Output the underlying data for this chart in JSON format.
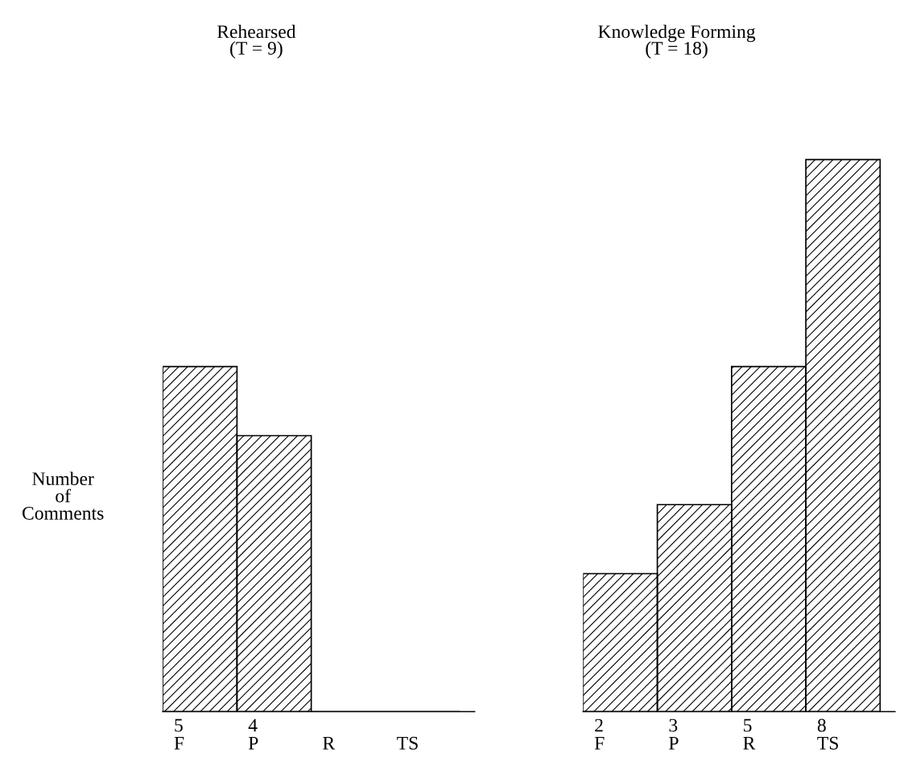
{
  "chart_data": [
    {
      "type": "bar",
      "title": "Rehearsed\n(T = 9)",
      "ylabel": "Number\nof\nComments",
      "categories": [
        "F",
        "P",
        "R",
        "TS"
      ],
      "values": [
        5,
        4,
        0,
        0
      ],
      "value_labels": [
        "5",
        "4",
        null,
        null
      ],
      "color": "#000000"
    },
    {
      "type": "bar",
      "title": "Knowledge Forming\n(T = 18)",
      "categories": [
        "F",
        "P",
        "R",
        "TS"
      ],
      "values": [
        2,
        3,
        5,
        8
      ],
      "value_labels": [
        "2",
        "3",
        "5",
        "8"
      ],
      "color": "#000000"
    }
  ]
}
